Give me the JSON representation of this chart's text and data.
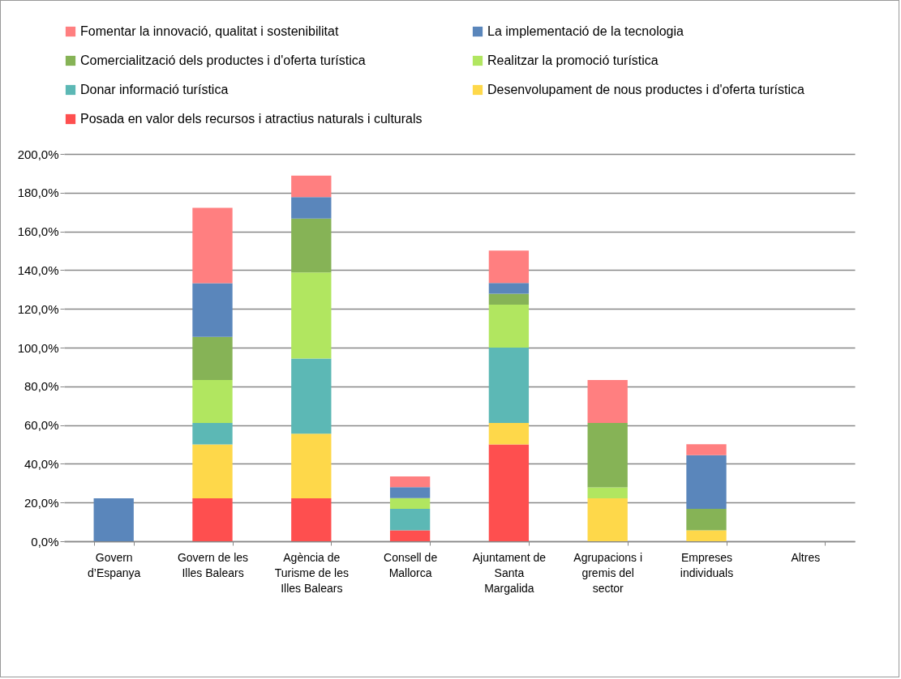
{
  "chart_data": {
    "type": "bar",
    "stacked": true,
    "categories": [
      "Govern d’Espanya",
      "Govern de les Illes Balears",
      "Agència de Turisme de les Illes Balears",
      "Consell de Mallorca",
      "Ajuntament de Santa Margalida",
      "Agrupacions i gremis del sector",
      "Empreses individuals",
      "Altres"
    ],
    "series": [
      {
        "name": "Posada en valor dels recursos i atractius naturals i culturals",
        "color": "#fe4f4f",
        "values": [
          0,
          22.2,
          22.2,
          5.6,
          50.0,
          0,
          0,
          0
        ]
      },
      {
        "name": "Desenvolupament de nous productes i d'oferta turística",
        "color": "#fed84a",
        "values": [
          0,
          27.8,
          33.3,
          0,
          11.1,
          22.2,
          5.6,
          0
        ]
      },
      {
        "name": "Donar informació turística",
        "color": "#5cb8b5",
        "values": [
          0,
          11.1,
          38.9,
          11.1,
          38.9,
          0,
          0,
          0
        ]
      },
      {
        "name": "Realitzar la promoció turística",
        "color": "#b1e660",
        "values": [
          0,
          22.2,
          44.4,
          5.6,
          22.2,
          5.6,
          0,
          0
        ]
      },
      {
        "name": "Comercialització dels productes i d'oferta turística",
        "color": "#86b356",
        "values": [
          0,
          22.2,
          27.8,
          0,
          5.6,
          33.3,
          11.1,
          0
        ]
      },
      {
        "name": "La implementació de la tecnologia",
        "color": "#5a86bb",
        "values": [
          22.2,
          27.8,
          11.1,
          5.6,
          5.6,
          0,
          27.8,
          0
        ]
      },
      {
        "name": "Fomentar la innovació, qualitat i sostenibilitat",
        "color": "#ff7f80",
        "values": [
          0,
          38.9,
          11.1,
          5.6,
          16.7,
          22.2,
          5.6,
          0
        ]
      }
    ],
    "ylim": [
      0,
      200
    ],
    "yticks": [
      {
        "value": 0,
        "label": "0,0%"
      },
      {
        "value": 20,
        "label": "20,0%"
      },
      {
        "value": 40,
        "label": "40,0%"
      },
      {
        "value": 60,
        "label": "60,0%"
      },
      {
        "value": 80,
        "label": "80,0%"
      },
      {
        "value": 100,
        "label": "100,0%"
      },
      {
        "value": 120,
        "label": "120,0%"
      },
      {
        "value": 140,
        "label": "140,0%"
      },
      {
        "value": 160,
        "label": "160,0%"
      },
      {
        "value": 180,
        "label": "180,0%"
      },
      {
        "value": 200,
        "label": "200,0%"
      }
    ],
    "grid": "y",
    "legend": "top"
  }
}
